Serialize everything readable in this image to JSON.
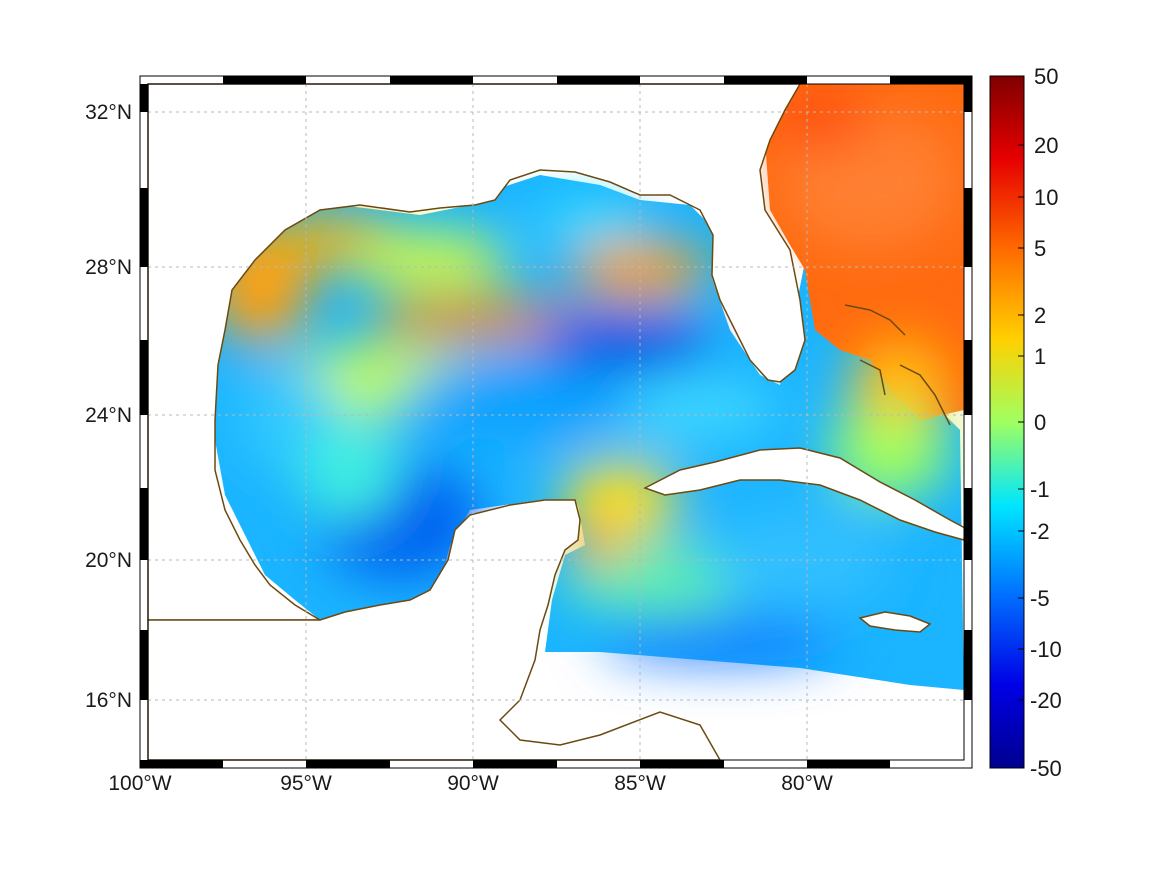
{
  "map": {
    "type": "heatmap",
    "projection": "mercator",
    "lon_range": [
      -100,
      -75
    ],
    "lat_range": [
      14,
      33
    ],
    "lon_ticks": [
      {
        "value": -100,
        "label": "100°W"
      },
      {
        "value": -95,
        "label": "95°W"
      },
      {
        "value": -90,
        "label": "90°W"
      },
      {
        "value": -85,
        "label": "85°W"
      },
      {
        "value": -80,
        "label": "80°W"
      }
    ],
    "lat_ticks": [
      {
        "value": 32,
        "label": "32°N"
      },
      {
        "value": 28,
        "label": "28°N"
      },
      {
        "value": 24,
        "label": "24°N"
      },
      {
        "value": 20,
        "label": "20°N"
      },
      {
        "value": 16,
        "label": "16°N"
      }
    ],
    "grid": true,
    "frame_style": "alternating black/white border",
    "coastline_color": "#6b4a12",
    "land_color": "#ffffff"
  },
  "colorbar": {
    "colormap": "jet",
    "scale": "symmetric log",
    "ticks": [
      "50",
      "20",
      "10",
      "5",
      "2",
      "1",
      "0",
      "-1",
      "-2",
      "-5",
      "-10",
      "-20",
      "-50"
    ],
    "colors": [
      "#7f0000",
      "#ff0000",
      "#ff8000",
      "#ffff00",
      "#80ff80",
      "#00ffff",
      "#0080ff",
      "#0000ff",
      "#00008f"
    ]
  }
}
